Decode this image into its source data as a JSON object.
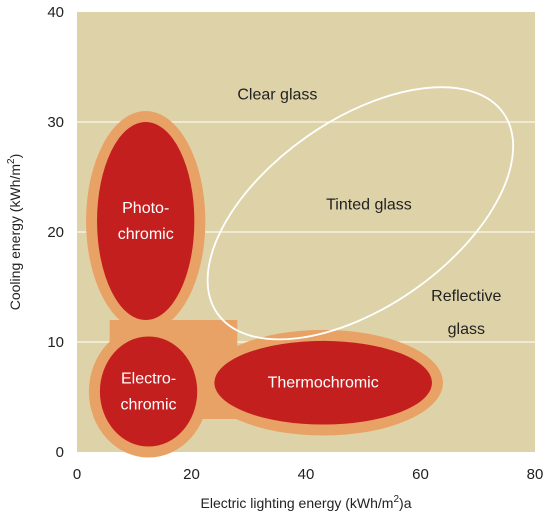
{
  "chart_data": {
    "type": "scatter",
    "title": "",
    "xlabel": "Electric lighting energy (kWh/m",
    "xlabel_sup": "2",
    "xlabel_suffix": ")a",
    "ylabel": "Cooling energy (kWh/m",
    "ylabel_sup": "2",
    "ylabel_suffix": ")",
    "xlim": [
      0,
      80
    ],
    "ylim": [
      0,
      40
    ],
    "x_ticks": [
      "0",
      "20",
      "40",
      "60",
      "80"
    ],
    "y_ticks": [
      "0",
      "10",
      "20",
      "30",
      "40"
    ],
    "grid": "horizontal",
    "colors": {
      "plot_background": "#ded3a8",
      "grid": "#f6f2e2",
      "halo": "#e8a265",
      "region_fill": "#c41f1f",
      "outline_region": "#ffffff"
    },
    "regions": [
      {
        "name": "Photochromic",
        "label_lines": [
          "Photo-",
          "chromic"
        ],
        "style": "filled",
        "cx": 12,
        "cy": 21,
        "rx": 8.5,
        "ry": 9,
        "angle": 0
      },
      {
        "name": "Electrochromic",
        "label_lines": [
          "Electro-",
          "chromic"
        ],
        "style": "filled",
        "cx": 12.5,
        "cy": 5.5,
        "rx": 8.5,
        "ry": 5,
        "angle": 0
      },
      {
        "name": "Thermochromic",
        "label_lines": [
          "Thermochromic"
        ],
        "style": "filled",
        "cx": 43,
        "cy": 6.3,
        "rx": 19,
        "ry": 3.8,
        "angle": 0
      },
      {
        "name": "Glass",
        "label_lines": [],
        "style": "outline",
        "cx": 49.5,
        "cy": 21.7,
        "rx": 30.5,
        "ry": 8.5,
        "angle": -35
      }
    ],
    "labels": [
      {
        "text": "Clear glass",
        "x": 35,
        "y": 32.5,
        "color": "dark"
      },
      {
        "text": "Tinted glass",
        "x": 51,
        "y": 22.5,
        "color": "dark"
      },
      {
        "text": "Reflective",
        "x": 68,
        "y": 14.2,
        "color": "dark"
      },
      {
        "text": "glass",
        "x": 68,
        "y": 11.2,
        "color": "dark"
      }
    ]
  }
}
